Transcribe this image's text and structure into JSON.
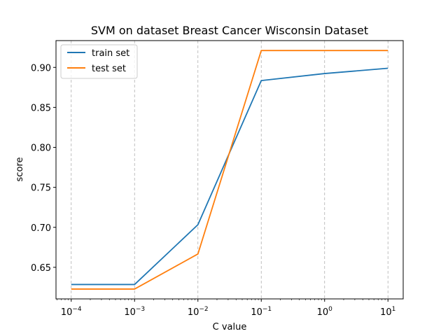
{
  "chart_data": {
    "type": "line",
    "title": "SVM on dataset Breast Cancer Wisconsin Dataset",
    "xlabel": "C value",
    "ylabel": "score",
    "xscale": "log",
    "x": [
      0.0001,
      0.001,
      0.01,
      0.1,
      1,
      10
    ],
    "xticks": [
      {
        "value": 0.0001,
        "base": "10",
        "exp": "−4"
      },
      {
        "value": 0.001,
        "base": "10",
        "exp": "−3"
      },
      {
        "value": 0.01,
        "base": "10",
        "exp": "−2"
      },
      {
        "value": 0.1,
        "base": "10",
        "exp": "−1"
      },
      {
        "value": 1,
        "base": "10",
        "exp": "0"
      },
      {
        "value": 10,
        "base": "10",
        "exp": "1"
      }
    ],
    "yticks": [
      "0.65",
      "0.70",
      "0.75",
      "0.80",
      "0.85",
      "0.90"
    ],
    "xlim": [
      5.75e-05,
      17.4
    ],
    "ylim": [
      0.6105,
      0.9335
    ],
    "grid": "x-dashed",
    "legend": "top-left",
    "series": [
      {
        "name": "train set",
        "color": "#1f77b4",
        "values": [
          0.6285,
          0.6285,
          0.7033,
          0.8835,
          0.8923,
          0.8989
        ]
      },
      {
        "name": "test set",
        "color": "#ff7f0e",
        "values": [
          0.6228,
          0.6228,
          0.6667,
          0.9211,
          0.9211,
          0.9211
        ]
      }
    ]
  }
}
